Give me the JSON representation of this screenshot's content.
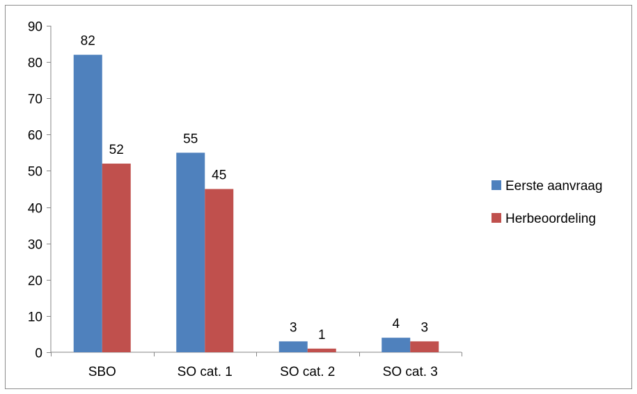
{
  "chart_data": {
    "type": "bar",
    "title": "",
    "xlabel": "",
    "ylabel": "",
    "categories": [
      "SBO",
      "SO cat. 1",
      "SO cat. 2",
      "SO cat. 3"
    ],
    "series": [
      {
        "name": "Eerste aanvraag",
        "values": [
          82,
          55,
          3,
          4
        ],
        "color": "#4F81BD"
      },
      {
        "name": "Herbeoordeling",
        "values": [
          52,
          45,
          1,
          3
        ],
        "color": "#C0504D"
      }
    ],
    "ylim": [
      0,
      90
    ],
    "yticks": [
      0,
      10,
      20,
      30,
      40,
      50,
      60,
      70,
      80,
      90
    ],
    "grid": false,
    "data_labels": true,
    "legend_position": "right"
  }
}
